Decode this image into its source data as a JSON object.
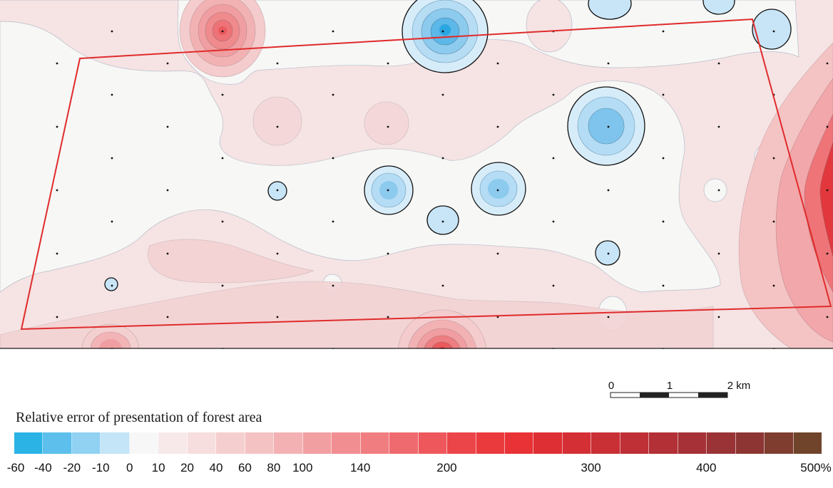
{
  "legend": {
    "title": "Relative error of presentation of forest area",
    "colors": [
      "#2bb3e6",
      "#5cbfec",
      "#91d1f2",
      "#c4e4f7",
      "#f6f7f6",
      "#f7e9ea",
      "#f7dede",
      "#f5cfcf",
      "#f4c2c3",
      "#f3b1b3",
      "#f29fa2",
      "#f18e91",
      "#f07d80",
      "#ef6a6e",
      "#ee585c",
      "#ec4549",
      "#ea3a3e",
      "#e83236",
      "#de2f34",
      "#d42f35",
      "#c93036",
      "#be3036",
      "#b23036",
      "#a63136",
      "#993335",
      "#8c3533",
      "#7f3d30",
      "#70442b"
    ],
    "ticks": [
      {
        "label": "-60",
        "index": 0
      },
      {
        "label": "-40",
        "index": 1
      },
      {
        "label": "-20",
        "index": 2
      },
      {
        "label": "-10",
        "index": 3
      },
      {
        "label": "0",
        "index": 4
      },
      {
        "label": "10",
        "index": 5
      },
      {
        "label": "20",
        "index": 6
      },
      {
        "label": "40",
        "index": 7
      },
      {
        "label": "60",
        "index": 8
      },
      {
        "label": "80",
        "index": 9
      },
      {
        "label": "100",
        "index": 10
      },
      {
        "label": "140",
        "index": 12
      },
      {
        "label": "200",
        "index": 15
      },
      {
        "label": "300",
        "index": 20
      },
      {
        "label": "400",
        "index": 24
      },
      {
        "label": "500%",
        "index": 28
      }
    ]
  },
  "scale_bar": {
    "labels": [
      "0",
      "1",
      "2 km"
    ]
  }
}
